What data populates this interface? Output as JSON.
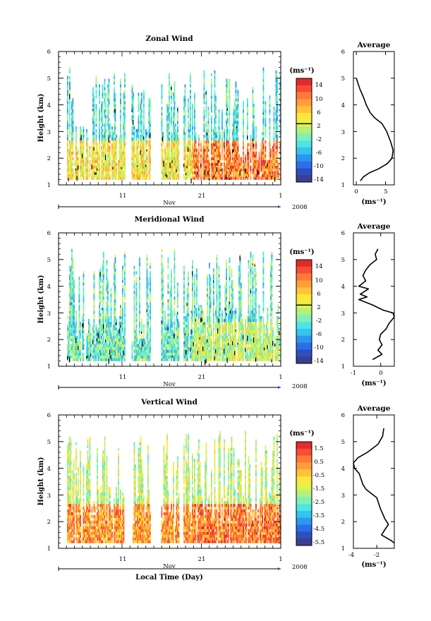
{
  "colors": {
    "scale": [
      "#3a3f8f",
      "#2e4fc0",
      "#2a6ee8",
      "#2c97f0",
      "#35c3ef",
      "#4de5e3",
      "#7ef0b8",
      "#b2f27a",
      "#e3f04d",
      "#ffe63a",
      "#ffc23a",
      "#ff9d3a",
      "#ff7a36",
      "#f84c34",
      "#e22a2a"
    ],
    "contour": "#000000",
    "profile": "#000000"
  },
  "time_axis": {
    "ticks": [
      "11",
      "21",
      "1"
    ],
    "month": "Nov",
    "year": "2008",
    "xlabel": "Local Time (Day)"
  },
  "chart_data": [
    {
      "type": "heatmap",
      "title": "Zonal Wind",
      "ylabel": "Height (km)",
      "yticks": [
        "1",
        "2",
        "3",
        "4",
        "5",
        "6"
      ],
      "ylim": [
        1,
        6
      ],
      "colorbar": {
        "unit": "(ms⁻¹)",
        "ticks": [
          "14",
          "10",
          "6",
          "2",
          "-2",
          "-6",
          "-10",
          "-14"
        ],
        "range": [
          -16,
          16
        ],
        "zero_line": 2
      },
      "field": {
        "top_km": 5.4,
        "gaps": [
          [
            0.0,
            0.035
          ],
          [
            0.3,
            0.325
          ],
          [
            0.41,
            0.46
          ],
          [
            0.54,
            0.56
          ]
        ],
        "low_value": 4,
        "high_value": -4,
        "late_low_value": 10
      },
      "average_profile": {
        "title": "Average",
        "xlabel": "(ms⁻¹)",
        "xticks": [
          "0",
          "5"
        ],
        "xlim": [
          -0.5,
          6.5
        ],
        "points": [
          [
            0.0,
            5.0
          ],
          [
            0.3,
            4.8
          ],
          [
            0.6,
            4.6
          ],
          [
            1.2,
            4.3
          ],
          [
            1.7,
            4.0
          ],
          [
            2.4,
            3.7
          ],
          [
            3.2,
            3.5
          ],
          [
            4.4,
            3.3
          ],
          [
            5.2,
            3.0
          ],
          [
            5.9,
            2.6
          ],
          [
            6.3,
            2.3
          ],
          [
            6.1,
            2.0
          ],
          [
            5.3,
            1.8
          ],
          [
            3.8,
            1.6
          ],
          [
            2.2,
            1.45
          ],
          [
            1.2,
            1.3
          ],
          [
            0.7,
            1.15
          ]
        ]
      }
    },
    {
      "type": "heatmap",
      "title": "Meridional Wind",
      "ylabel": "Height (km)",
      "yticks": [
        "1",
        "2",
        "3",
        "4",
        "5",
        "6"
      ],
      "ylim": [
        1,
        6
      ],
      "colorbar": {
        "unit": "(ms⁻¹)",
        "ticks": [
          "14",
          "10",
          "6",
          "2",
          "-2",
          "-6",
          "-10",
          "-14"
        ],
        "range": [
          -16,
          16
        ],
        "zero_line": 2
      },
      "field": {
        "top_km": 5.4,
        "gaps": [
          [
            0.0,
            0.035
          ],
          [
            0.3,
            0.325
          ],
          [
            0.41,
            0.46
          ],
          [
            0.54,
            0.56
          ]
        ],
        "low_value": -3,
        "high_value": -3,
        "late_low_value": 1
      },
      "average_profile": {
        "title": "Average",
        "xlabel": "(ms⁻¹)",
        "xticks": [
          "-1",
          "0"
        ],
        "xlim": [
          -1.0,
          0.5
        ],
        "points": [
          [
            -0.1,
            5.4
          ],
          [
            -0.2,
            5.2
          ],
          [
            -0.15,
            5.0
          ],
          [
            -0.4,
            4.8
          ],
          [
            -0.55,
            4.6
          ],
          [
            -0.65,
            4.4
          ],
          [
            -0.55,
            4.2
          ],
          [
            -0.8,
            4.0
          ],
          [
            -0.45,
            3.9
          ],
          [
            -0.75,
            3.7
          ],
          [
            -0.5,
            3.6
          ],
          [
            -0.8,
            3.5
          ],
          [
            -0.3,
            3.3
          ],
          [
            0.1,
            3.1
          ],
          [
            0.45,
            3.0
          ],
          [
            0.5,
            2.85
          ],
          [
            0.3,
            2.6
          ],
          [
            0.2,
            2.4
          ],
          [
            0.0,
            2.2
          ],
          [
            -0.05,
            2.0
          ],
          [
            0.05,
            1.8
          ],
          [
            -0.1,
            1.6
          ],
          [
            0.05,
            1.45
          ],
          [
            -0.3,
            1.25
          ]
        ]
      }
    },
    {
      "type": "heatmap",
      "title": "Vertical Wind",
      "ylabel": "Height (km)",
      "yticks": [
        "1",
        "2",
        "3",
        "4",
        "5",
        "6"
      ],
      "ylim": [
        1,
        6
      ],
      "colorbar": {
        "unit": "(ms⁻¹)",
        "ticks": [
          "1.5",
          "0.5",
          "-0.5",
          "-1.5",
          "-2.5",
          "-3.5",
          "-4.5",
          "-5.5"
        ],
        "range": [
          -6,
          2
        ],
        "zero_line": null
      },
      "field": {
        "top_km": 5.4,
        "gaps": [
          [
            0.0,
            0.035
          ],
          [
            0.3,
            0.33
          ],
          [
            0.41,
            0.46
          ],
          [
            0.54,
            0.56
          ]
        ],
        "low_value": 0.2,
        "high_value": -1.8,
        "late_low_value": 0.5
      },
      "average_profile": {
        "title": "Average",
        "xlabel": "(ms⁻¹)",
        "xticks": [
          "-4",
          "-2"
        ],
        "xlim": [
          -4,
          -0.5
        ],
        "points": [
          [
            -1.4,
            5.5
          ],
          [
            -1.5,
            5.2
          ],
          [
            -1.9,
            4.9
          ],
          [
            -2.8,
            4.6
          ],
          [
            -3.6,
            4.4
          ],
          [
            -4.0,
            4.2
          ],
          [
            -3.9,
            4.0
          ],
          [
            -3.5,
            3.8
          ],
          [
            -3.2,
            3.4
          ],
          [
            -2.9,
            3.2
          ],
          [
            -2.0,
            2.9
          ],
          [
            -1.7,
            2.5
          ],
          [
            -1.3,
            2.1
          ],
          [
            -1.0,
            1.9
          ],
          [
            -1.3,
            1.7
          ],
          [
            -1.6,
            1.5
          ],
          [
            -0.8,
            1.3
          ],
          [
            -0.5,
            1.2
          ]
        ]
      }
    }
  ]
}
